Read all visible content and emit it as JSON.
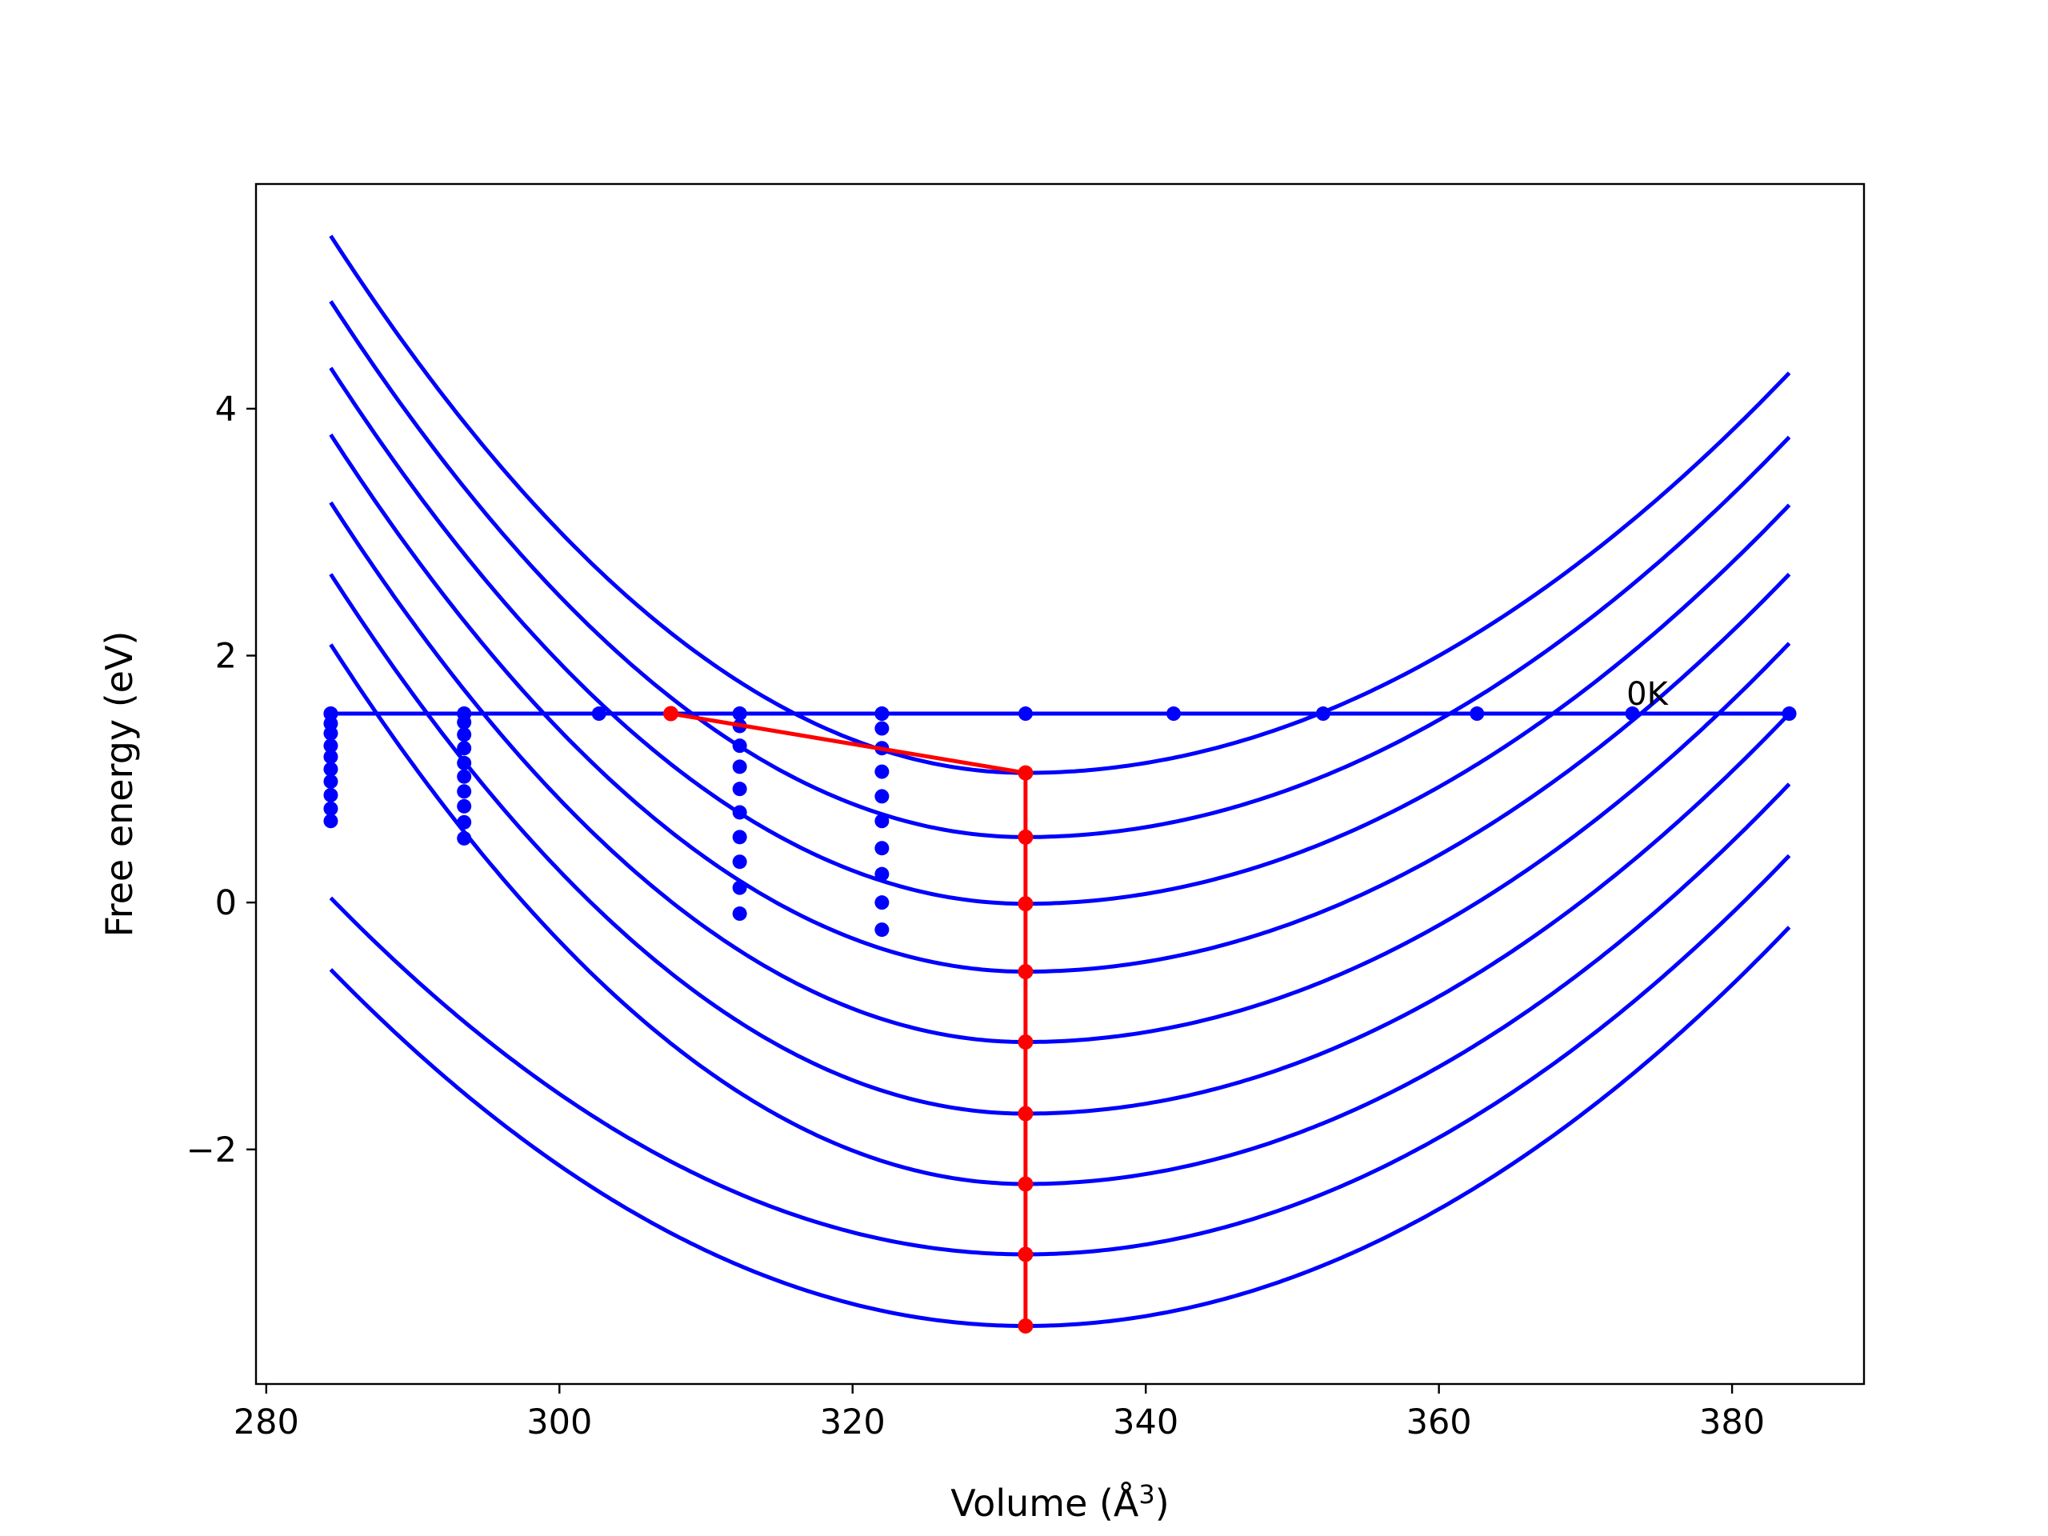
{
  "chart_data": {
    "type": "line",
    "title": "",
    "xlabel": "Volume (Å",
    "xlabel_sup": "3",
    "xlabel_close": ")",
    "ylabel": "Free energy (eV)",
    "xlim": [
      279.3,
      389.0
    ],
    "ylim": [
      -3.9,
      5.82
    ],
    "xticks": [
      280,
      300,
      320,
      340,
      360,
      380
    ],
    "xtick_labels": [
      "280",
      "300",
      "320",
      "340",
      "360",
      "380"
    ],
    "yticks": [
      -2,
      0,
      2,
      4
    ],
    "ytick_labels": [
      "−2",
      "0",
      "2",
      "4"
    ],
    "grid": false,
    "legend": "none",
    "colors": {
      "curves": "#0000ff",
      "path": "#ff0000",
      "axes": "#000000"
    },
    "curves": {
      "x_range": [
        284.4,
        383.9
      ],
      "vertex_x": 331.8,
      "vertex_y": [
        1.05,
        0.53,
        -0.01,
        -0.56,
        -1.13,
        -1.71,
        -2.28,
        -2.85,
        -3.43
      ],
      "y_at_left": [
        5.4,
        4.87,
        4.33,
        3.79,
        3.24,
        2.66,
        2.09,
        null,
        null
      ],
      "y_at_right": [
        4.29,
        3.77,
        3.22,
        2.66,
        2.1,
        1.53,
        0.96,
        0.38,
        -0.2
      ]
    },
    "zero_kelvin_line": {
      "y": 1.53,
      "x_range": [
        284.4,
        383.9
      ],
      "points_x": [
        284.4,
        293.5,
        302.7,
        307.6,
        312.3,
        322.0,
        331.8,
        341.9,
        352.1,
        362.6,
        373.2,
        383.9
      ],
      "label": "0K",
      "label_x": 372.8,
      "label_y": 1.6
    },
    "dot_columns": [
      {
        "x": 284.4,
        "y": [
          1.53,
          1.45,
          1.37,
          1.27,
          1.18,
          1.08,
          0.98,
          0.87,
          0.76,
          0.66
        ]
      },
      {
        "x": 293.5,
        "y": [
          1.53,
          1.46,
          1.36,
          1.25,
          1.13,
          1.02,
          0.9,
          0.78,
          0.65,
          0.52
        ]
      },
      {
        "x": 312.3,
        "y": [
          1.53,
          1.43,
          1.27,
          1.1,
          0.92,
          0.73,
          0.53,
          0.33,
          0.12,
          -0.09
        ]
      },
      {
        "x": 322.0,
        "y": [
          1.53,
          1.41,
          1.25,
          1.06,
          0.86,
          0.66,
          0.44,
          0.23,
          0.0,
          -0.22
        ]
      }
    ],
    "path": {
      "points": [
        {
          "x": 307.6,
          "y": 1.53
        },
        {
          "x": 331.8,
          "y": 1.05
        },
        {
          "x": 331.8,
          "y": 0.53
        },
        {
          "x": 331.8,
          "y": -0.01
        },
        {
          "x": 331.8,
          "y": -0.56
        },
        {
          "x": 331.8,
          "y": -1.13
        },
        {
          "x": 331.8,
          "y": -1.71
        },
        {
          "x": 331.8,
          "y": -2.28
        },
        {
          "x": 331.8,
          "y": -2.85
        },
        {
          "x": 331.8,
          "y": -3.43
        }
      ]
    }
  }
}
